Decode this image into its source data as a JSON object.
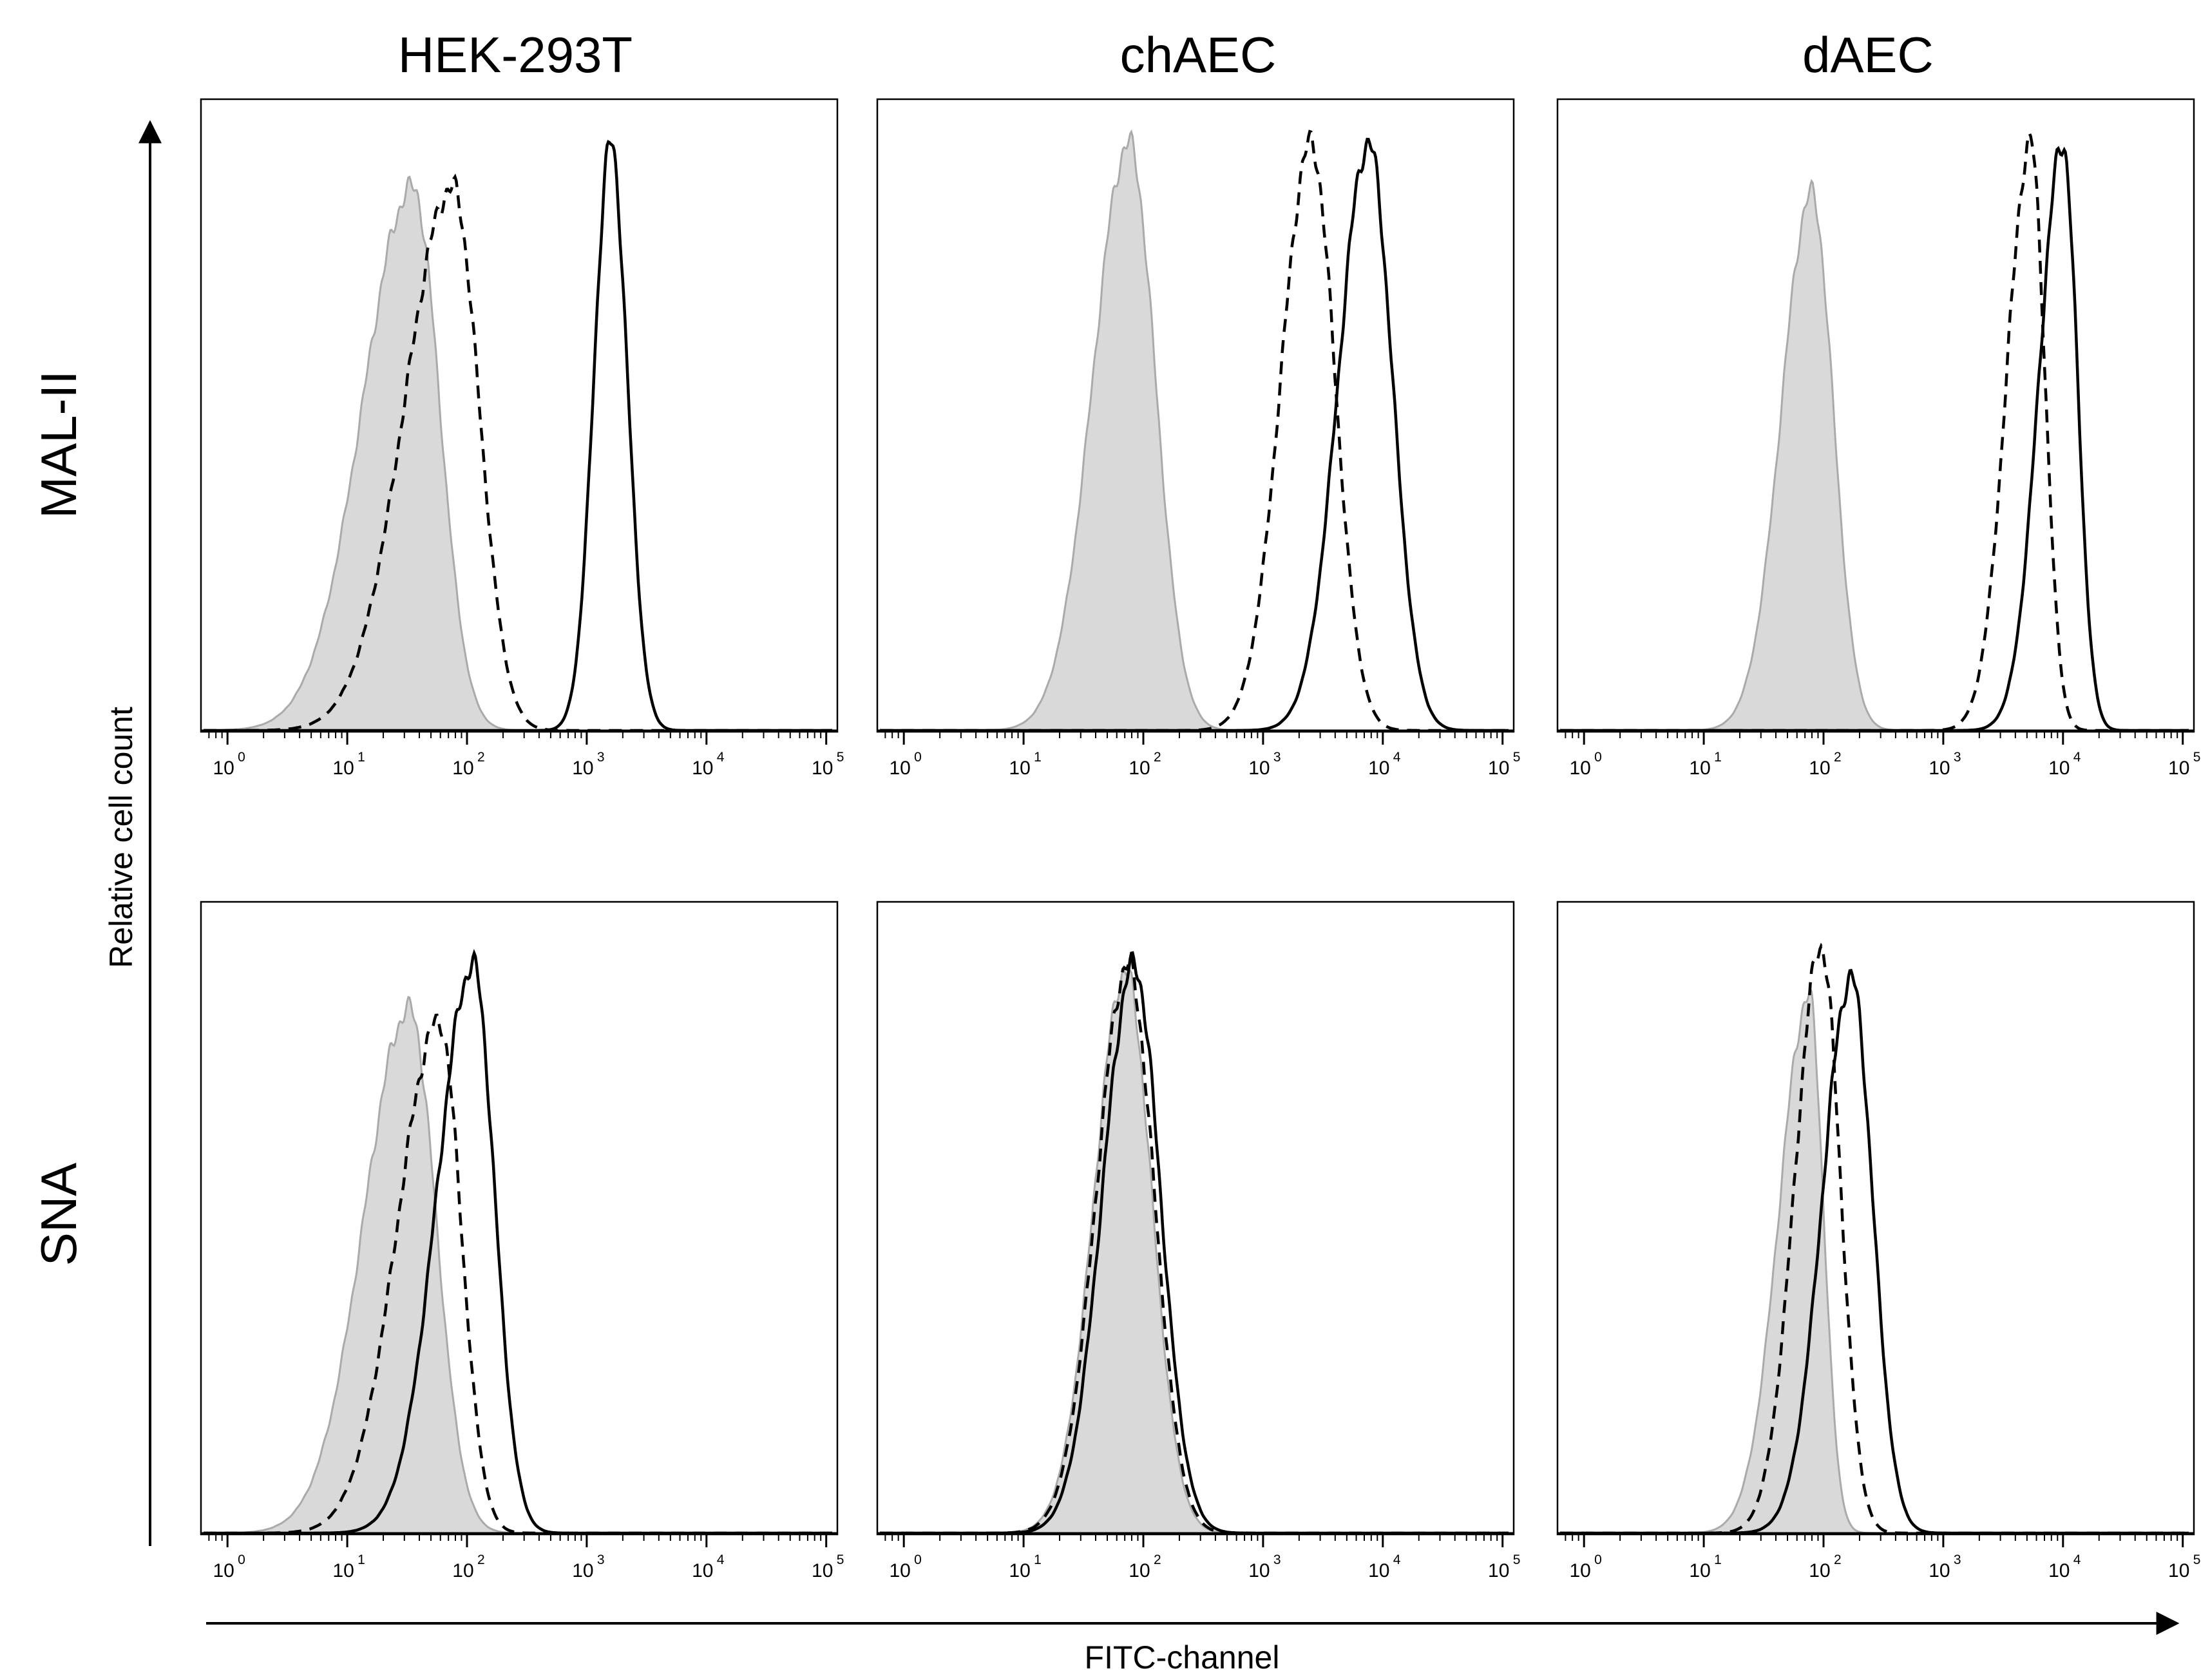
{
  "chart_data": {
    "type": "histogram-grid",
    "column_titles": [
      "HEK-293T",
      "chAEC",
      "dAEC"
    ],
    "row_titles": [
      "MAL-II",
      "SNA"
    ],
    "xlabel": "FITC-channel",
    "ylabel": "Relative cell count",
    "x_scale": "log10",
    "xlim_log10": [
      -0.2,
      5.05
    ],
    "x_ticks": [
      {
        "base": "10",
        "exp": "0"
      },
      {
        "base": "10",
        "exp": "1"
      },
      {
        "base": "10",
        "exp": "2"
      },
      {
        "base": "10",
        "exp": "3"
      },
      {
        "base": "10",
        "exp": "4"
      },
      {
        "base": "10",
        "exp": "5"
      }
    ],
    "colors": {
      "filled": "#d9d9d9",
      "filled_edge": "#aaaaaa",
      "line": "#000000"
    },
    "series_styles": [
      {
        "key": "filled",
        "style": "gray filled histogram"
      },
      {
        "key": "dashed",
        "style": "black dashed line"
      },
      {
        "key": "solid",
        "style": "black solid line"
      }
    ],
    "panels": [
      {
        "row": "MAL-II",
        "col": "HEK-293T",
        "filled": {
          "peak_log10": 1.55,
          "height": 0.86,
          "sigma_left": 0.42,
          "sigma_right": 0.22
        },
        "dashed": {
          "peak_log10": 1.88,
          "height": 0.86,
          "sigma_left": 0.4,
          "sigma_right": 0.22
        },
        "solid": {
          "peak_log10": 3.2,
          "height": 0.93,
          "sigma_left": 0.14,
          "sigma_right": 0.14
        }
      },
      {
        "row": "MAL-II",
        "col": "chAEC",
        "filled": {
          "peak_log10": 1.88,
          "height": 0.93,
          "sigma_left": 0.3,
          "sigma_right": 0.22
        },
        "dashed": {
          "peak_log10": 3.4,
          "height": 0.93,
          "sigma_left": 0.25,
          "sigma_right": 0.2
        },
        "solid": {
          "peak_log10": 3.88,
          "height": 0.93,
          "sigma_left": 0.25,
          "sigma_right": 0.2
        }
      },
      {
        "row": "MAL-II",
        "col": "dAEC",
        "filled": {
          "peak_log10": 1.9,
          "height": 0.85,
          "sigma_left": 0.25,
          "sigma_right": 0.18
        },
        "dashed": {
          "peak_log10": 3.73,
          "height": 0.93,
          "sigma_left": 0.2,
          "sigma_right": 0.12
        },
        "solid": {
          "peak_log10": 4.0,
          "height": 0.93,
          "sigma_left": 0.2,
          "sigma_right": 0.12
        }
      },
      {
        "row": "SNA",
        "col": "HEK-293T",
        "filled": {
          "peak_log10": 1.52,
          "height": 0.83,
          "sigma_left": 0.38,
          "sigma_right": 0.22
        },
        "dashed": {
          "peak_log10": 1.77,
          "height": 0.81,
          "sigma_left": 0.35,
          "sigma_right": 0.18
        },
        "solid": {
          "peak_log10": 2.05,
          "height": 0.9,
          "sigma_left": 0.3,
          "sigma_right": 0.18
        }
      },
      {
        "row": "SNA",
        "col": "chAEC",
        "filled": {
          "peak_log10": 1.85,
          "height": 0.89,
          "sigma_left": 0.26,
          "sigma_right": 0.22
        },
        "dashed": {
          "peak_log10": 1.87,
          "height": 0.9,
          "sigma_left": 0.26,
          "sigma_right": 0.22
        },
        "solid": {
          "peak_log10": 1.92,
          "height": 0.9,
          "sigma_left": 0.26,
          "sigma_right": 0.22
        }
      },
      {
        "row": "SNA",
        "col": "dAEC",
        "filled": {
          "peak_log10": 1.88,
          "height": 0.85,
          "sigma_left": 0.25,
          "sigma_right": 0.12
        },
        "dashed": {
          "peak_log10": 1.98,
          "height": 0.93,
          "sigma_left": 0.22,
          "sigma_right": 0.16
        },
        "solid": {
          "peak_log10": 2.23,
          "height": 0.88,
          "sigma_left": 0.24,
          "sigma_right": 0.18
        }
      }
    ]
  }
}
